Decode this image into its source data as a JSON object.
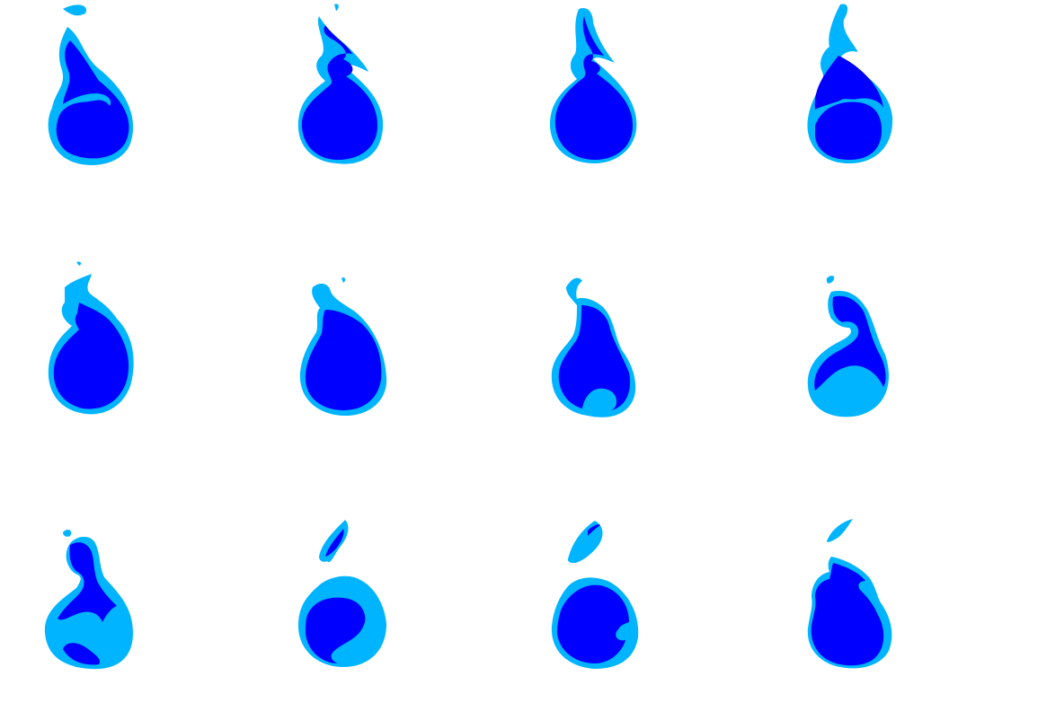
{
  "sprite_sheet": {
    "rows": 3,
    "columns": 4,
    "colors": {
      "outer": "#00b4ff",
      "inner": "#0000ff",
      "background": "#ffffff"
    },
    "frames": [
      {
        "index": 1,
        "icon": "blue-flame-icon"
      },
      {
        "index": 2,
        "icon": "blue-flame-icon"
      },
      {
        "index": 3,
        "icon": "blue-flame-icon"
      },
      {
        "index": 4,
        "icon": "blue-flame-icon"
      },
      {
        "index": 5,
        "icon": "blue-flame-icon"
      },
      {
        "index": 6,
        "icon": "blue-flame-icon"
      },
      {
        "index": 7,
        "icon": "blue-flame-icon"
      },
      {
        "index": 8,
        "icon": "blue-flame-icon"
      },
      {
        "index": 9,
        "icon": "blue-flame-icon"
      },
      {
        "index": 10,
        "icon": "blue-flame-icon"
      },
      {
        "index": 11,
        "icon": "blue-flame-icon"
      },
      {
        "index": 12,
        "icon": "blue-flame-icon"
      }
    ]
  }
}
